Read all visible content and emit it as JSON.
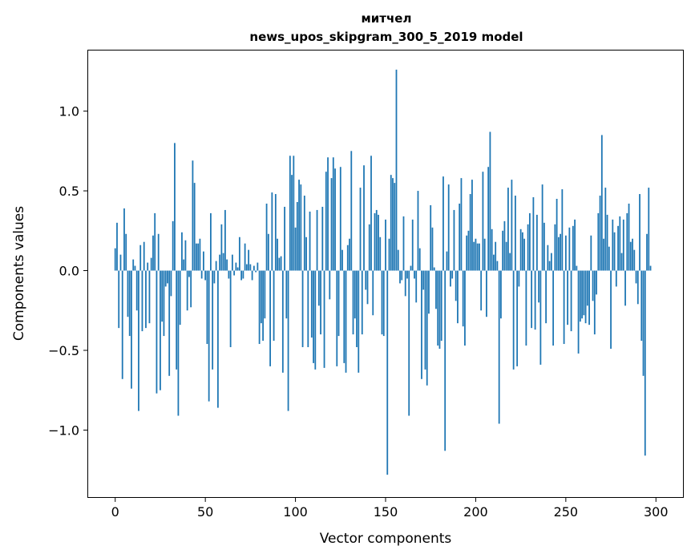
{
  "colors": {
    "bar": "#1f77b4",
    "axis": "#000000",
    "background": "#ffffff"
  },
  "chart_data": {
    "type": "bar",
    "title_line1": "митчел",
    "title_line2": "news_upos_skipgram_300_5_2019 model",
    "xlabel": "Vector components",
    "ylabel": "Components values",
    "xlim": [
      -15,
      315
    ],
    "ylim": [
      -1.42,
      1.38
    ],
    "grid": false,
    "x_ticks": [
      {
        "value": 0,
        "label": "0"
      },
      {
        "value": 50,
        "label": "50"
      },
      {
        "value": 100,
        "label": "100"
      },
      {
        "value": 150,
        "label": "150"
      },
      {
        "value": 200,
        "label": "200"
      },
      {
        "value": 250,
        "label": "250"
      },
      {
        "value": 300,
        "label": "300"
      }
    ],
    "y_ticks": [
      {
        "value": -1.0,
        "label": "−1.0"
      },
      {
        "value": -0.5,
        "label": "−0.5"
      },
      {
        "value": 0.0,
        "label": "0.0"
      },
      {
        "value": 0.5,
        "label": "0.5"
      },
      {
        "value": 1.0,
        "label": "1.0"
      }
    ],
    "values": [
      0.14,
      0.3,
      -0.36,
      0.1,
      -0.68,
      0.39,
      0.23,
      -0.29,
      -0.41,
      -0.74,
      0.07,
      0.03,
      -0.25,
      -0.88,
      0.16,
      -0.38,
      0.18,
      -0.36,
      0.05,
      -0.33,
      0.08,
      0.22,
      0.36,
      -0.77,
      0.23,
      -0.75,
      -0.32,
      -0.41,
      -0.1,
      -0.08,
      -0.66,
      -0.16,
      0.31,
      0.8,
      -0.62,
      -0.91,
      -0.34,
      0.24,
      0.07,
      0.19,
      -0.25,
      -0.04,
      -0.23,
      0.69,
      0.55,
      0.17,
      0.17,
      0.2,
      -0.05,
      0.12,
      -0.06,
      -0.46,
      -0.82,
      0.36,
      -0.62,
      -0.08,
      0.06,
      -0.86,
      0.1,
      0.29,
      0.11,
      0.38,
      0.07,
      -0.05,
      -0.48,
      0.1,
      -0.03,
      0.05,
      0.02,
      0.21,
      -0.06,
      -0.05,
      0.17,
      0.04,
      0.13,
      0.04,
      -0.06,
      0.03,
      -0.01,
      0.05,
      -0.46,
      -0.33,
      -0.44,
      -0.3,
      0.42,
      0.23,
      -0.6,
      0.49,
      -0.44,
      0.48,
      0.2,
      0.08,
      0.09,
      -0.64,
      0.4,
      -0.3,
      -0.88,
      0.72,
      0.6,
      0.72,
      0.27,
      0.43,
      0.57,
      0.54,
      -0.48,
      0.47,
      0.21,
      -0.48,
      0.37,
      -0.42,
      -0.58,
      -0.62,
      0.38,
      -0.22,
      -0.4,
      0.4,
      -0.61,
      0.62,
      0.71,
      -0.18,
      0.58,
      0.71,
      0.64,
      -0.6,
      -0.41,
      0.65,
      0.13,
      -0.58,
      -0.64,
      0.16,
      0.2,
      0.75,
      -0.4,
      -0.3,
      -0.48,
      -0.64,
      0.52,
      -0.4,
      0.66,
      -0.12,
      -0.21,
      0.29,
      0.72,
      -0.28,
      0.36,
      0.38,
      0.35,
      0.21,
      -0.4,
      -0.41,
      0.32,
      -1.28,
      0.2,
      0.6,
      0.58,
      0.55,
      1.26,
      0.13,
      -0.08,
      -0.06,
      0.34,
      -0.16,
      -0.05,
      -0.91,
      0.03,
      0.32,
      -0.05,
      -0.2,
      0.5,
      0.14,
      -0.68,
      -0.12,
      -0.62,
      -0.72,
      -0.27,
      0.41,
      0.27,
      0.02,
      -0.24,
      -0.47,
      -0.49,
      -0.44,
      0.59,
      -1.13,
      0.12,
      0.54,
      -0.1,
      -0.05,
      0.38,
      -0.19,
      -0.33,
      0.42,
      0.58,
      -0.35,
      -0.47,
      0.22,
      0.25,
      0.48,
      0.57,
      0.18,
      0.2,
      0.17,
      0.17,
      -0.25,
      0.62,
      0.2,
      -0.29,
      0.65,
      0.87,
      0.26,
      0.1,
      0.18,
      0.06,
      -0.96,
      -0.3,
      0.25,
      0.31,
      0.18,
      0.52,
      0.11,
      0.57,
      -0.62,
      0.47,
      -0.6,
      -0.1,
      0.26,
      0.24,
      0.2,
      -0.47,
      0.29,
      0.36,
      -0.36,
      0.46,
      -0.37,
      0.35,
      -0.2,
      -0.59,
      0.54,
      0.3,
      -0.33,
      0.16,
      0.06,
      0.11,
      -0.47,
      0.29,
      0.45,
      0.21,
      0.23,
      0.51,
      -0.46,
      0.22,
      -0.34,
      0.27,
      -0.38,
      0.28,
      0.32,
      0.03,
      -0.52,
      -0.32,
      -0.3,
      -0.28,
      -0.33,
      -0.22,
      -0.34,
      0.22,
      -0.19,
      -0.4,
      -0.15,
      0.36,
      0.47,
      0.85,
      0.2,
      0.52,
      0.35,
      0.15,
      -0.49,
      0.32,
      0.24,
      -0.1,
      0.28,
      0.34,
      0.11,
      0.32,
      -0.22,
      0.36,
      0.42,
      0.18,
      0.2,
      0.13,
      -0.08,
      -0.21,
      0.48,
      -0.44,
      -0.66,
      -1.16,
      0.23,
      0.52,
      0.03
    ]
  }
}
